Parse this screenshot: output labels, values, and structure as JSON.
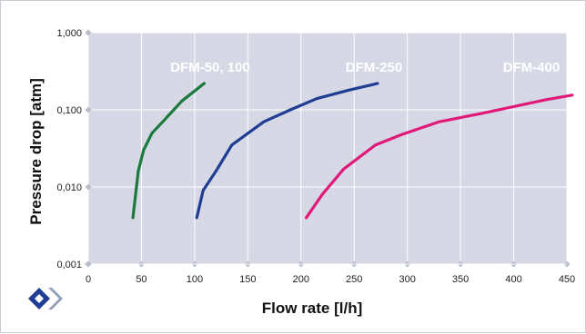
{
  "chart_data": {
    "type": "line",
    "xlabel": "Flow rate [l/h]",
    "ylabel": "Pressure drop [atm]",
    "xlim": [
      0,
      450
    ],
    "ylim": [
      0.001,
      1.0
    ],
    "y_scale": "log",
    "x_ticks": [
      "0",
      "50",
      "100",
      "150",
      "200",
      "250",
      "300",
      "350",
      "400",
      "450"
    ],
    "y_ticks": [
      "0,001",
      "0,010",
      "0,100",
      "1,000"
    ],
    "grid": true,
    "series": [
      {
        "name": "DFM-50, 100",
        "color": "#1a7a3c",
        "x": [
          42,
          47,
          52,
          60,
          70,
          88,
          109
        ],
        "y": [
          0.004,
          0.016,
          0.03,
          0.05,
          0.07,
          0.13,
          0.22
        ]
      },
      {
        "name": "DFM-250",
        "color": "#1f3d93",
        "x": [
          102,
          108,
          120,
          135,
          165,
          190,
          215,
          245,
          272
        ],
        "y": [
          0.004,
          0.009,
          0.016,
          0.035,
          0.07,
          0.1,
          0.14,
          0.18,
          0.22
        ]
      },
      {
        "name": "DFM-400",
        "color": "#e0197a",
        "x": [
          205,
          220,
          240,
          270,
          295,
          330,
          370,
          400,
          430,
          455
        ],
        "y": [
          0.004,
          0.008,
          0.017,
          0.035,
          0.048,
          0.07,
          0.09,
          0.11,
          0.135,
          0.155
        ]
      }
    ]
  }
}
